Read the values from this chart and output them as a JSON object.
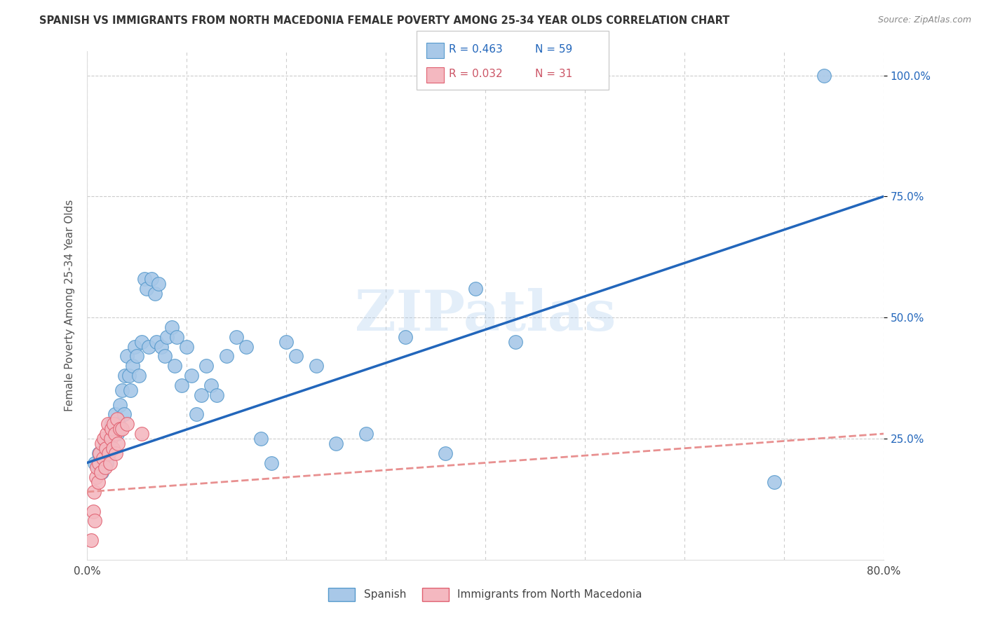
{
  "title": "SPANISH VS IMMIGRANTS FROM NORTH MACEDONIA FEMALE POVERTY AMONG 25-34 YEAR OLDS CORRELATION CHART",
  "source": "Source: ZipAtlas.com",
  "ylabel": "Female Poverty Among 25-34 Year Olds",
  "xlim": [
    0.0,
    0.8
  ],
  "ylim": [
    0.0,
    1.05
  ],
  "ytick_positions": [
    0.25,
    0.5,
    0.75,
    1.0
  ],
  "ytick_labels": [
    "25.0%",
    "50.0%",
    "75.0%",
    "100.0%"
  ],
  "watermark": "ZIPatlas",
  "legend_r1": "R = 0.463",
  "legend_n1": "N = 59",
  "legend_r2": "R = 0.032",
  "legend_n2": "N = 31",
  "spanish_color": "#a8c8e8",
  "spanish_edge": "#5599cc",
  "macedonian_color": "#f4b8c0",
  "macedonian_edge": "#e06070",
  "blue_line_color": "#2266bb",
  "pink_line_color": "#e89090",
  "background_color": "#ffffff",
  "grid_color": "#cccccc",
  "spanish_x": [
    0.008,
    0.012,
    0.015,
    0.018,
    0.02,
    0.022,
    0.025,
    0.028,
    0.03,
    0.032,
    0.033,
    0.035,
    0.037,
    0.038,
    0.04,
    0.042,
    0.044,
    0.046,
    0.048,
    0.05,
    0.052,
    0.055,
    0.058,
    0.06,
    0.062,
    0.065,
    0.068,
    0.07,
    0.072,
    0.075,
    0.078,
    0.08,
    0.085,
    0.088,
    0.09,
    0.095,
    0.1,
    0.105,
    0.11,
    0.115,
    0.12,
    0.125,
    0.13,
    0.14,
    0.15,
    0.16,
    0.175,
    0.185,
    0.2,
    0.21,
    0.23,
    0.25,
    0.28,
    0.32,
    0.36,
    0.39,
    0.43,
    0.69,
    0.74
  ],
  "spanish_y": [
    0.2,
    0.22,
    0.18,
    0.24,
    0.2,
    0.25,
    0.28,
    0.3,
    0.26,
    0.28,
    0.32,
    0.35,
    0.3,
    0.38,
    0.42,
    0.38,
    0.35,
    0.4,
    0.44,
    0.42,
    0.38,
    0.45,
    0.58,
    0.56,
    0.44,
    0.58,
    0.55,
    0.45,
    0.57,
    0.44,
    0.42,
    0.46,
    0.48,
    0.4,
    0.46,
    0.36,
    0.44,
    0.38,
    0.3,
    0.34,
    0.4,
    0.36,
    0.34,
    0.42,
    0.46,
    0.44,
    0.25,
    0.2,
    0.45,
    0.42,
    0.4,
    0.24,
    0.26,
    0.46,
    0.22,
    0.56,
    0.45,
    0.16,
    1.0
  ],
  "macedonian_x": [
    0.004,
    0.006,
    0.007,
    0.008,
    0.009,
    0.01,
    0.011,
    0.012,
    0.013,
    0.014,
    0.015,
    0.016,
    0.017,
    0.018,
    0.019,
    0.02,
    0.021,
    0.022,
    0.023,
    0.024,
    0.025,
    0.026,
    0.027,
    0.028,
    0.029,
    0.03,
    0.031,
    0.033,
    0.035,
    0.04,
    0.055
  ],
  "macedonian_y": [
    0.04,
    0.1,
    0.14,
    0.08,
    0.17,
    0.19,
    0.16,
    0.2,
    0.22,
    0.18,
    0.24,
    0.21,
    0.25,
    0.19,
    0.23,
    0.26,
    0.28,
    0.22,
    0.2,
    0.25,
    0.27,
    0.23,
    0.28,
    0.26,
    0.22,
    0.29,
    0.24,
    0.27,
    0.27,
    0.28,
    0.26
  ]
}
